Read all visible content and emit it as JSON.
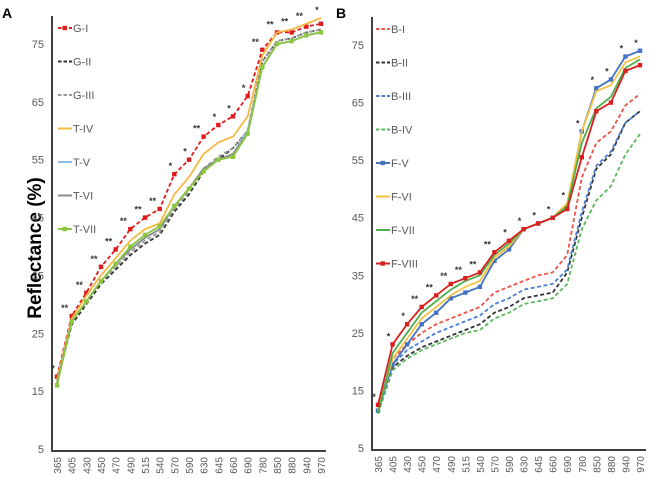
{
  "figure": {
    "ylabel": "Reflectance (%)"
  },
  "chart_data": [
    {
      "type": "line",
      "panel": "A",
      "xlabel": "",
      "ylabel": "Reflectance (%)",
      "ylim": [
        5,
        80
      ],
      "yticks": [
        5,
        15,
        25,
        35,
        45,
        55,
        65,
        75
      ],
      "grid": false,
      "legend_position": "top-left",
      "categories": [
        "365",
        "405",
        "430",
        "450",
        "470",
        "490",
        "515",
        "540",
        "570",
        "590",
        "630",
        "645",
        "660",
        "690",
        "780",
        "850",
        "880",
        "940",
        "970"
      ],
      "significance": [
        "*",
        "**",
        "**",
        "**",
        "**",
        "**",
        "**",
        "**",
        "*",
        "*",
        "**",
        "*",
        "*",
        "*",
        "**",
        "**",
        "**",
        "**",
        "*"
      ],
      "series": [
        {
          "name": "G-I",
          "color": "#e31a1c",
          "dash": true,
          "marker": true,
          "values": [
            17.5,
            28,
            32,
            36.5,
            39.5,
            43,
            45,
            46.5,
            52.5,
            55,
            59,
            61,
            62.5,
            66,
            74,
            77,
            77,
            78,
            78.5
          ]
        },
        {
          "name": "G-II",
          "color": "#333333",
          "dash": true,
          "marker": false,
          "values": [
            16.5,
            26.5,
            30,
            33.5,
            36,
            38.5,
            40.5,
            42,
            46,
            49,
            53,
            55,
            57,
            60,
            72,
            75.5,
            76,
            77,
            77.5
          ]
        },
        {
          "name": "G-III",
          "color": "#999999",
          "dash": true,
          "marker": false,
          "values": [
            16.5,
            27,
            30.5,
            34,
            36.5,
            39,
            41,
            42.5,
            46.5,
            49.5,
            53.5,
            55.5,
            57,
            60,
            72,
            75.5,
            76,
            77,
            77.5
          ]
        },
        {
          "name": "T-IV",
          "color": "#f5b841",
          "dash": false,
          "marker": false,
          "values": [
            17,
            27.5,
            31.5,
            35,
            38,
            41,
            43,
            44,
            49,
            52,
            56,
            58,
            59,
            62.5,
            73,
            77,
            77.5,
            78.5,
            79.5
          ]
        },
        {
          "name": "T-V",
          "color": "#8fbde3",
          "dash": false,
          "marker": false,
          "values": [
            16.5,
            27,
            30.5,
            34,
            37,
            39.5,
            41.5,
            43,
            47,
            50,
            53.5,
            55,
            56,
            60,
            71,
            75,
            75.5,
            76.5,
            77
          ]
        },
        {
          "name": "T-VI",
          "color": "#8c8c8c",
          "dash": false,
          "marker": false,
          "values": [
            16.5,
            27,
            30.5,
            34,
            37,
            39.5,
            41.5,
            43,
            47,
            50,
            53.5,
            55,
            56,
            59.5,
            71,
            75,
            75.5,
            76.5,
            77
          ]
        },
        {
          "name": "T-VII",
          "color": "#8cc63f",
          "dash": false,
          "marker": true,
          "values": [
            16,
            27,
            30.5,
            34,
            37,
            40,
            42,
            43.5,
            47,
            50,
            53,
            55,
            55.5,
            59.5,
            71,
            75,
            75.5,
            76.5,
            77
          ]
        }
      ]
    },
    {
      "type": "line",
      "panel": "B",
      "xlabel": "",
      "ylabel": "",
      "ylim": [
        5,
        80
      ],
      "yticks": [
        5,
        15,
        25,
        35,
        45,
        55,
        65,
        75
      ],
      "grid": false,
      "legend_position": "top-left",
      "categories": [
        "365",
        "405",
        "430",
        "450",
        "470",
        "490",
        "515",
        "540",
        "570",
        "590",
        "630",
        "645",
        "660",
        "690",
        "780",
        "850",
        "880",
        "940",
        "970"
      ],
      "significance": [
        "*",
        "*",
        "*",
        "**",
        "**",
        "**",
        "**",
        "**",
        "**",
        "*",
        "*",
        "*",
        "*",
        "*",
        "*",
        "*",
        "*",
        "*",
        "*"
      ],
      "series": [
        {
          "name": "B-I",
          "color": "#e8534a",
          "dash": true,
          "marker": false,
          "values": [
            12,
            20.5,
            23,
            25,
            26.5,
            27.5,
            28.5,
            29.5,
            32,
            33,
            34,
            35,
            35.5,
            38.5,
            52,
            58,
            60,
            64.5,
            66.5
          ]
        },
        {
          "name": "B-II",
          "color": "#333333",
          "dash": true,
          "marker": false,
          "values": [
            11,
            19,
            21,
            22.5,
            23.5,
            24.5,
            25.5,
            26.5,
            28.5,
            29.5,
            31,
            31.5,
            32,
            35.5,
            45,
            53.5,
            56,
            61.5,
            63.5
          ]
        },
        {
          "name": "B-III",
          "color": "#4a7fcf",
          "dash": true,
          "marker": false,
          "values": [
            11.5,
            19.5,
            22,
            23.5,
            25,
            26,
            27,
            28,
            30,
            31,
            32.5,
            33,
            33.5,
            36,
            46,
            54,
            56.5,
            61.5,
            63.5
          ]
        },
        {
          "name": "B-IV",
          "color": "#5cb85c",
          "dash": true,
          "marker": false,
          "values": [
            11,
            18.5,
            20.5,
            22,
            23,
            24,
            25,
            25.5,
            27.5,
            28.5,
            30,
            30.5,
            31,
            33.5,
            43,
            48,
            50.5,
            56,
            59.5
          ]
        },
        {
          "name": "F-V",
          "color": "#4472c4",
          "dash": false,
          "marker": true,
          "values": [
            11.5,
            19.5,
            23,
            26.5,
            28.5,
            31,
            32,
            33,
            37.5,
            39.5,
            43,
            44,
            45,
            47,
            60,
            67.5,
            69,
            73,
            74
          ]
        },
        {
          "name": "F-VI",
          "color": "#f5c242",
          "dash": false,
          "marker": false,
          "values": [
            11.5,
            20.5,
            24,
            27.5,
            29.5,
            31.5,
            33,
            34,
            38,
            40,
            43,
            44,
            45,
            47.5,
            60,
            67,
            68,
            72,
            73
          ]
        },
        {
          "name": "F-VII",
          "color": "#4cae4c",
          "dash": false,
          "marker": false,
          "values": [
            11,
            21.5,
            25,
            28.5,
            30.5,
            32.5,
            34,
            35,
            38.5,
            40.5,
            43,
            44,
            45,
            47,
            58,
            64,
            66,
            71,
            72.5
          ]
        },
        {
          "name": "F-VIII",
          "color": "#d92020",
          "dash": false,
          "marker": true,
          "values": [
            12.5,
            23,
            26.5,
            29.5,
            31.5,
            33.5,
            34.5,
            35.5,
            39,
            41,
            43,
            44,
            45,
            46.5,
            55.5,
            63.5,
            65,
            70.5,
            71.5
          ]
        }
      ]
    }
  ]
}
